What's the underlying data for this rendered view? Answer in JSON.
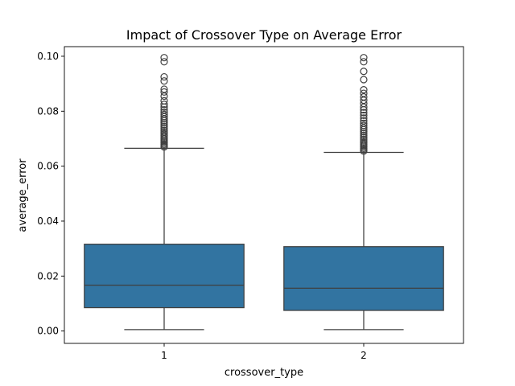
{
  "chart_data": {
    "type": "box",
    "title": "Impact of Crossover Type on Average Error",
    "xlabel": "crossover_type",
    "ylabel": "average_error",
    "categories": [
      "1",
      "2"
    ],
    "ylim": [
      -0.0045,
      0.1035
    ],
    "yticks": [
      0.0,
      0.02,
      0.04,
      0.06,
      0.08,
      0.1
    ],
    "ytick_labels": [
      "0.00",
      "0.02",
      "0.04",
      "0.06",
      "0.08",
      "0.10"
    ],
    "grid": false,
    "box_color": "#3274a1",
    "line_color": "#3f3f3f",
    "boxes": [
      {
        "category": "1",
        "whisker_low": 0.0005,
        "q1": 0.0085,
        "median": 0.0167,
        "q3": 0.0316,
        "whisker_high": 0.0665,
        "outliers": [
          0.067,
          0.0675,
          0.068,
          0.0685,
          0.069,
          0.0695,
          0.07,
          0.0706,
          0.0712,
          0.0718,
          0.0724,
          0.073,
          0.0737,
          0.0744,
          0.0751,
          0.0758,
          0.0765,
          0.0772,
          0.078,
          0.0788,
          0.0796,
          0.0805,
          0.0815,
          0.0825,
          0.0838,
          0.0855,
          0.087,
          0.088,
          0.091,
          0.0925,
          0.098,
          0.0995
        ]
      },
      {
        "category": "2",
        "whisker_low": 0.0005,
        "q1": 0.0075,
        "median": 0.0156,
        "q3": 0.0307,
        "whisker_high": 0.065,
        "outliers": [
          0.0655,
          0.066,
          0.0665,
          0.067,
          0.0675,
          0.068,
          0.0686,
          0.0692,
          0.0698,
          0.0705,
          0.0712,
          0.0719,
          0.0726,
          0.0733,
          0.074,
          0.0748,
          0.0756,
          0.0765,
          0.0775,
          0.0785,
          0.0795,
          0.0805,
          0.0815,
          0.0828,
          0.084,
          0.0852,
          0.0865,
          0.0878,
          0.0915,
          0.0945,
          0.098,
          0.0995
        ]
      }
    ]
  }
}
